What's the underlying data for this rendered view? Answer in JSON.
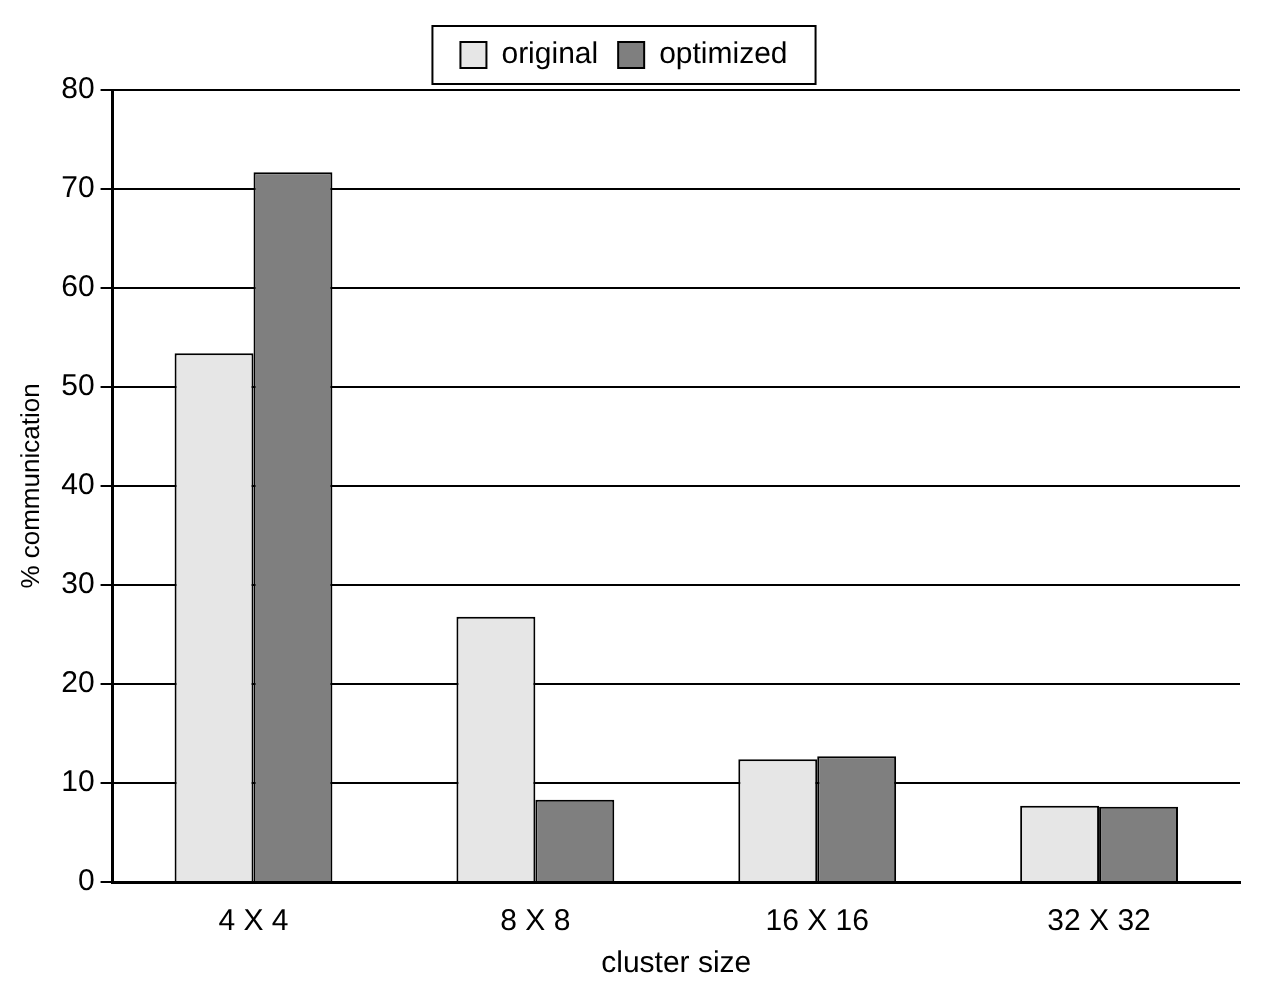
{
  "chart_data": {
    "type": "bar",
    "xlabel": "cluster size",
    "ylabel": "% communication",
    "categories": [
      "4 X 4",
      "8 X 8",
      "16 X 16",
      "32 X 32"
    ],
    "series": [
      {
        "name": "original",
        "color": "#e6e6e6",
        "values": [
          53.4,
          26.8,
          12.4,
          7.7
        ]
      },
      {
        "name": "optimized",
        "color": "#7f7f7f",
        "values": [
          71.7,
          8.3,
          12.7,
          7.6
        ]
      }
    ],
    "ylim": [
      0,
      80
    ],
    "yticks": [
      0,
      10,
      20,
      30,
      40,
      50,
      60,
      70,
      80
    ],
    "grid": "y",
    "legend": "top"
  }
}
